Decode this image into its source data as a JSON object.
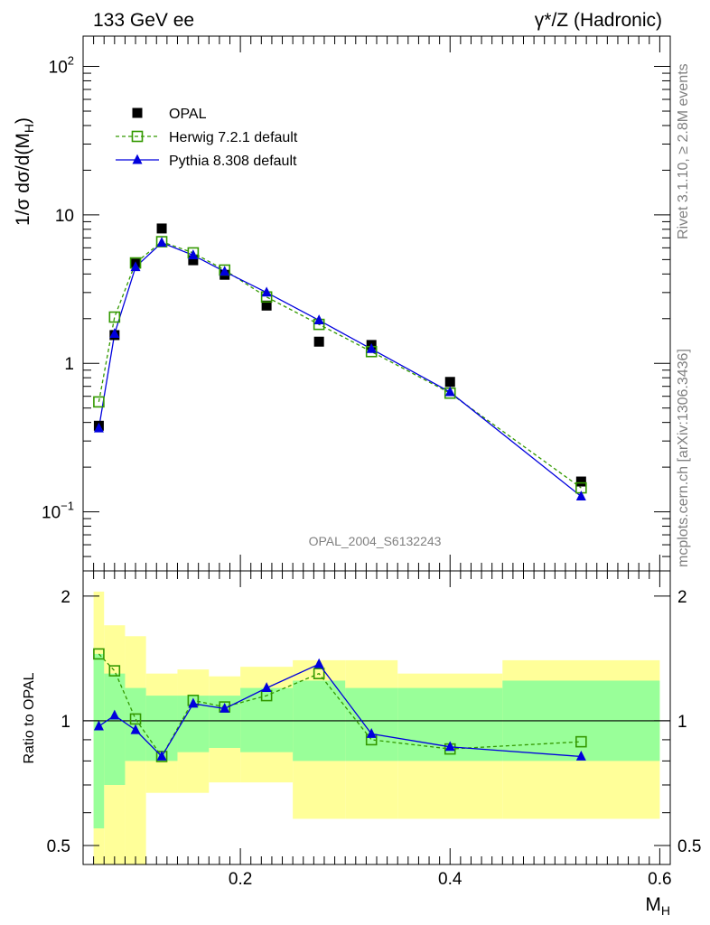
{
  "header": {
    "left": "133 GeV ee",
    "right": "γ*/Z (Hadronic)"
  },
  "side_text": {
    "rivet": "Rivet 3.1.10, ≥ 2.8M events",
    "mcplots": "mcplots.cern.ch [arXiv:1306.3436]"
  },
  "chart_data": {
    "type": "line",
    "analysis_label": "OPAL_2004_S6132243",
    "xlabel": "M_H",
    "ylabel": "1/σ dσ/d(M_H)",
    "xlim": [
      0.05,
      0.61
    ],
    "ylim": [
      0.04,
      160
    ],
    "yscale": "log",
    "xticks": [
      0.2,
      0.4,
      0.6
    ],
    "yticks": [
      {
        "value": 0.1,
        "base": "10",
        "exp": "−1"
      },
      {
        "value": 1,
        "base": "1",
        "exp": ""
      },
      {
        "value": 10,
        "base": "10",
        "exp": ""
      },
      {
        "value": 100,
        "base": "10",
        "exp": "2"
      }
    ],
    "legend_position": "top-left",
    "series": [
      {
        "name": "OPAL",
        "marker": "filled-square",
        "color": "#000000",
        "x": [
          0.065,
          0.08,
          0.1,
          0.125,
          0.155,
          0.185,
          0.225,
          0.275,
          0.325,
          0.4,
          0.525
        ],
        "y": [
          0.38,
          1.55,
          4.7,
          8.1,
          4.95,
          3.95,
          2.45,
          1.4,
          1.33,
          0.75,
          0.16
        ]
      },
      {
        "name": "Herwig 7.2.1 default",
        "marker": "open-square",
        "line": "dashed",
        "color": "#339900",
        "x": [
          0.065,
          0.08,
          0.1,
          0.125,
          0.155,
          0.185,
          0.225,
          0.275,
          0.325,
          0.4,
          0.525
        ],
        "y": [
          0.55,
          2.05,
          4.75,
          6.6,
          5.55,
          4.25,
          2.8,
          1.83,
          1.2,
          0.63,
          0.145
        ]
      },
      {
        "name": "Pythia 8.308 default",
        "marker": "filled-triangle",
        "line": "solid",
        "color": "#0000dd",
        "x": [
          0.065,
          0.08,
          0.1,
          0.125,
          0.155,
          0.185,
          0.225,
          0.275,
          0.325,
          0.4,
          0.525
        ],
        "y": [
          0.365,
          1.58,
          4.45,
          6.5,
          5.35,
          4.15,
          3.0,
          1.95,
          1.25,
          0.64,
          0.127
        ]
      }
    ],
    "ratio_panel": {
      "ylabel": "Ratio to OPAL",
      "ylim": [
        0.45,
        2.3
      ],
      "yscale": "log",
      "yticks": [
        0.5,
        1,
        2
      ],
      "reference": 1,
      "bin_edges": [
        0.06,
        0.07,
        0.09,
        0.11,
        0.14,
        0.17,
        0.2,
        0.25,
        0.3,
        0.35,
        0.45,
        0.6
      ],
      "band_1sigma": {
        "color": "#99ff99",
        "low": [
          0.55,
          0.7,
          0.8,
          0.8,
          0.84,
          0.86,
          0.84,
          0.8,
          0.8,
          0.8,
          0.8
        ],
        "high": [
          1.45,
          1.3,
          1.2,
          1.15,
          1.15,
          1.15,
          1.2,
          1.25,
          1.2,
          1.2,
          1.25
        ]
      },
      "band_2sigma": {
        "color": "#ffff99",
        "low": [
          0.45,
          0.45,
          0.45,
          0.67,
          0.67,
          0.71,
          0.71,
          0.58,
          0.58,
          0.58,
          0.58
        ],
        "high": [
          2.05,
          1.7,
          1.6,
          1.3,
          1.33,
          1.28,
          1.35,
          1.4,
          1.4,
          1.3,
          1.4
        ]
      },
      "series": [
        {
          "name": "Herwig 7.2.1 default",
          "x": [
            0.065,
            0.08,
            0.1,
            0.125,
            0.155,
            0.185,
            0.225,
            0.275,
            0.325,
            0.4,
            0.525
          ],
          "y": [
            1.45,
            1.32,
            1.01,
            0.82,
            1.12,
            1.08,
            1.15,
            1.3,
            0.9,
            0.855,
            0.89
          ]
        },
        {
          "name": "Pythia 8.308 default",
          "x": [
            0.065,
            0.08,
            0.1,
            0.125,
            0.155,
            0.185,
            0.225,
            0.275,
            0.325,
            0.4,
            0.525
          ],
          "y": [
            0.97,
            1.03,
            0.95,
            0.82,
            1.1,
            1.07,
            1.2,
            1.37,
            0.93,
            0.865,
            0.82
          ]
        }
      ]
    }
  }
}
